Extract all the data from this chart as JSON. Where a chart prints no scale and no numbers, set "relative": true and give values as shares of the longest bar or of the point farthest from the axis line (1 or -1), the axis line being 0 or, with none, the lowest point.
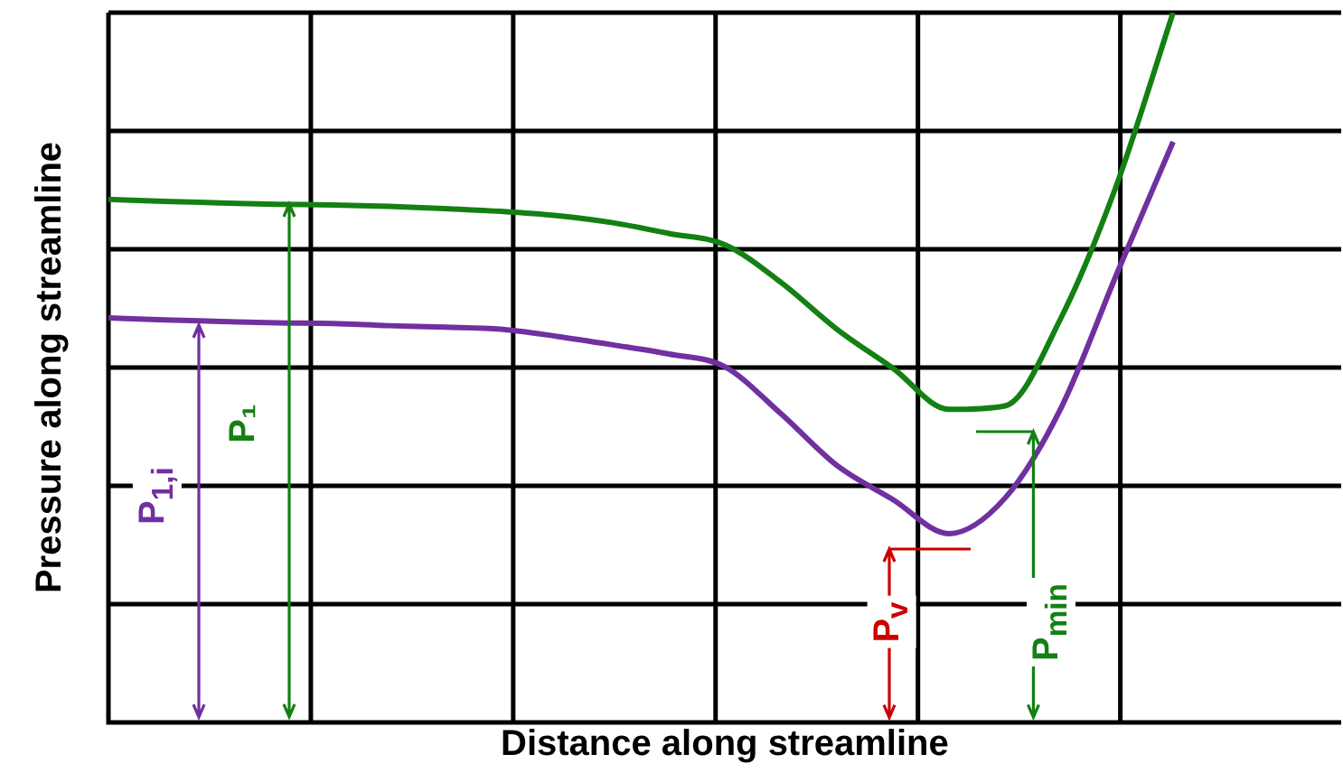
{
  "chart_data": {
    "type": "line",
    "relative": true,
    "grid": true,
    "legend": false,
    "marker": "none",
    "line_style": "solid",
    "xlabel": "Distance along streamline",
    "ylabel": "Pressure along streamline",
    "annotations": [
      "P₁",
      "P$_{1,i}$",
      "P$_{v}$",
      "P$_{min}$"
    ],
    "categories": [
      null,
      null,
      null,
      null,
      null,
      null,
      null,
      null,
      null,
      null,
      null,
      null,
      null,
      null,
      null,
      null,
      null,
      null,
      null,
      null,
      null,
      null,
      null
    ],
    "series": [
      {
        "color": "#138013",
        "values": [
          0.737,
          0.734,
          0.732,
          0.73,
          0.729,
          0.727,
          0.724,
          0.72,
          0.714,
          0.704,
          0.689,
          0.673,
          0.62,
          0.554,
          0.499,
          0.441,
          0.446,
          0.57,
          0.759,
          1,
          null,
          null,
          null
        ]
      },
      {
        "color": "#7030a0",
        "values": [
          0.57,
          0.567,
          0.565,
          0.563,
          0.562,
          0.559,
          0.557,
          0.554,
          0.544,
          0.532,
          0.519,
          0.501,
          0.435,
          0.362,
          0.314,
          0.266,
          0.316,
          0.443,
          0.633,
          0.818,
          null,
          null,
          null
        ]
      }
    ]
  }
}
